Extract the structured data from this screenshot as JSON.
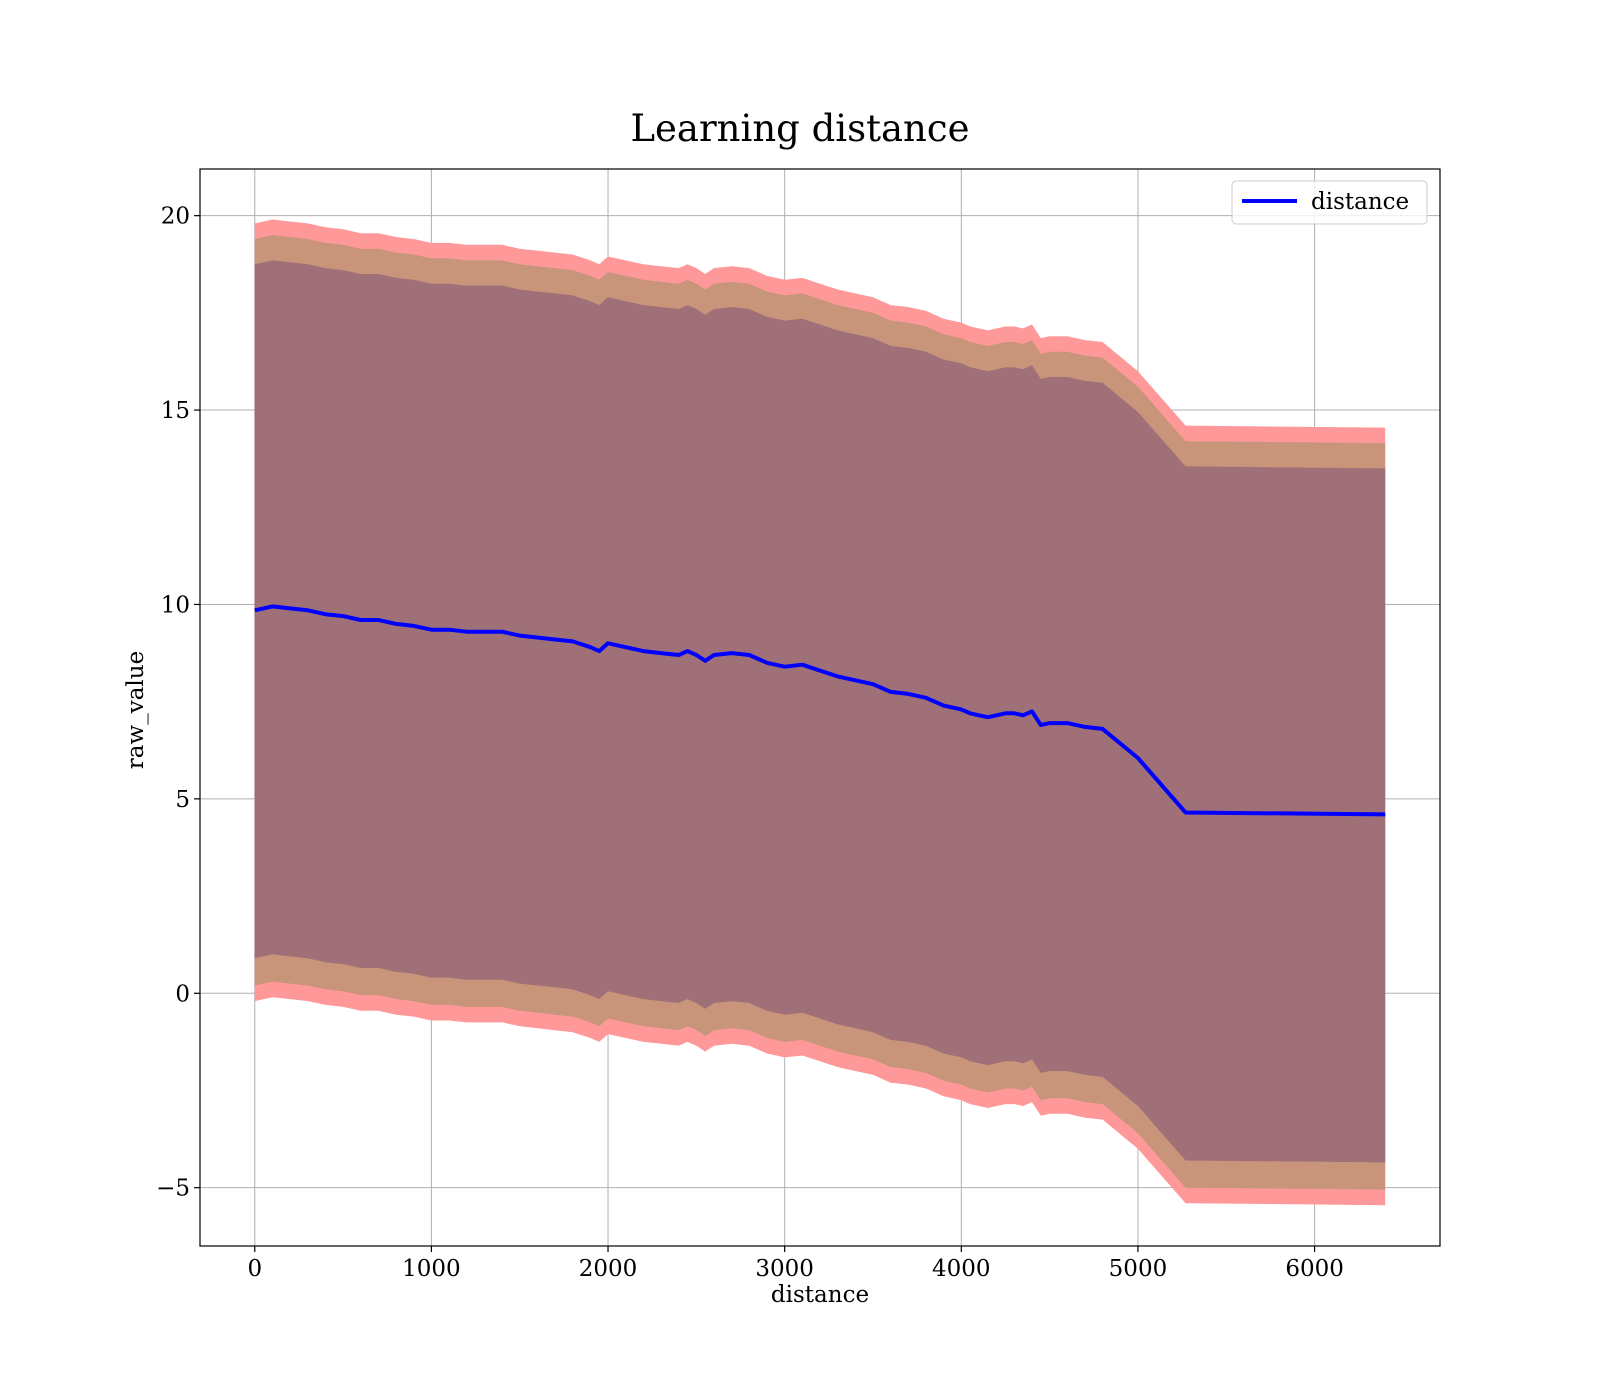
{
  "chart_data": {
    "type": "line",
    "title": "Learning distance",
    "xlabel": "distance",
    "ylabel": "raw_value",
    "xlim": [
      -310,
      6710
    ],
    "ylim": [
      -6.5,
      21.2
    ],
    "xticks": [
      0,
      1000,
      2000,
      3000,
      4000,
      5000,
      6000
    ],
    "xtick_labels": [
      "0",
      "1000",
      "2000",
      "3000",
      "4000",
      "5000",
      "6000"
    ],
    "yticks": [
      -5,
      0,
      5,
      10,
      15,
      20
    ],
    "ytick_labels": [
      "−5",
      "0",
      "5",
      "10",
      "15",
      "20"
    ],
    "grid": true,
    "legend": {
      "position": "top-right",
      "entries": [
        "distance"
      ]
    },
    "colors": {
      "line": "#0000ff",
      "band_outer": "#ff9999",
      "band_middle": "#c8947a",
      "band_inner": "#a07078",
      "grid": "#b0b0b0"
    },
    "series": [
      {
        "name": "distance",
        "x": [
          0,
          100,
          200,
          300,
          400,
          500,
          600,
          700,
          800,
          900,
          1000,
          1100,
          1200,
          1300,
          1400,
          1500,
          1600,
          1700,
          1800,
          1900,
          1950,
          2000,
          2100,
          2200,
          2300,
          2400,
          2450,
          2500,
          2550,
          2600,
          2700,
          2800,
          2900,
          3000,
          3100,
          3200,
          3300,
          3400,
          3500,
          3600,
          3700,
          3800,
          3900,
          4000,
          4050,
          4100,
          4150,
          4200,
          4250,
          4300,
          4350,
          4400,
          4450,
          4500,
          4600,
          4700,
          4800,
          5000,
          5270,
          6400
        ],
        "values": [
          9.85,
          9.95,
          9.9,
          9.85,
          9.75,
          9.7,
          9.6,
          9.6,
          9.5,
          9.45,
          9.35,
          9.35,
          9.3,
          9.3,
          9.3,
          9.2,
          9.15,
          9.1,
          9.05,
          8.9,
          8.8,
          9.0,
          8.9,
          8.8,
          8.75,
          8.7,
          8.8,
          8.7,
          8.55,
          8.7,
          8.75,
          8.7,
          8.5,
          8.4,
          8.45,
          8.3,
          8.15,
          8.05,
          7.95,
          7.75,
          7.7,
          7.6,
          7.4,
          7.3,
          7.2,
          7.15,
          7.1,
          7.15,
          7.2,
          7.2,
          7.15,
          7.25,
          6.9,
          6.95,
          6.95,
          6.85,
          6.8,
          6.05,
          4.65,
          4.6
        ]
      }
    ],
    "bands": [
      {
        "name": "outer",
        "lower_offset": -10.05,
        "upper_offset": 9.95
      },
      {
        "name": "middle",
        "lower_offset": -9.65,
        "upper_offset": 9.55
      },
      {
        "name": "inner",
        "lower_offset": -8.95,
        "upper_offset": 8.9
      }
    ]
  }
}
